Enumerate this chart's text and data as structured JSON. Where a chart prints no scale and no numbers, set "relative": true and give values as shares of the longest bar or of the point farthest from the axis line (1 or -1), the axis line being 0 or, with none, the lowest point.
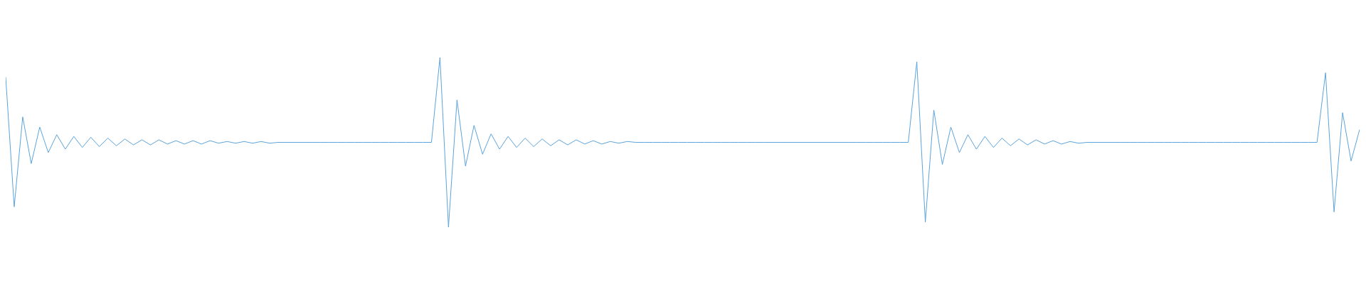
{
  "chart_data": {
    "type": "line",
    "relative": true,
    "grid": false,
    "legend": false,
    "marker": "none",
    "line_style": "solid",
    "categories": [
      null,
      null,
      null,
      null,
      null,
      null,
      null,
      null,
      null,
      null,
      null,
      null,
      null,
      null,
      null,
      null,
      null,
      null,
      null,
      null,
      null,
      null,
      null,
      null,
      null,
      null,
      null,
      null,
      null,
      null,
      null,
      null,
      null,
      null,
      null,
      null,
      null,
      null,
      null,
      null,
      null,
      null,
      null,
      null,
      null,
      null,
      null,
      null,
      null,
      null,
      null,
      null,
      null,
      null,
      null,
      null,
      null,
      null,
      null,
      null,
      null,
      null,
      null,
      null,
      null,
      null,
      null,
      null,
      null,
      null,
      null,
      null,
      null,
      null,
      null,
      null,
      null,
      null,
      null,
      null,
      null,
      null,
      null,
      null,
      null,
      null,
      null,
      null,
      null,
      null,
      null,
      null,
      null,
      null,
      null,
      null,
      null,
      null,
      null,
      null,
      null,
      null,
      null,
      null,
      null,
      null,
      null,
      null,
      null,
      null,
      null,
      null,
      null,
      null,
      null,
      null,
      null,
      null,
      null,
      null,
      null,
      null,
      null,
      null,
      null,
      null,
      null,
      null,
      null,
      null,
      null,
      null,
      null,
      null,
      null,
      null,
      null,
      null,
      null,
      null,
      null,
      null,
      null,
      null,
      null,
      null,
      null,
      null,
      null,
      null,
      null,
      null,
      null,
      null,
      null,
      null,
      null,
      null,
      null,
      null
    ],
    "series": [
      {
        "color": "#5ba3dc",
        "values": [
          0.885,
          0.12,
          0.65,
          0.375,
          0.59,
          0.44,
          0.545,
          0.46,
          0.535,
          0.47,
          0.53,
          0.475,
          0.525,
          0.48,
          0.52,
          0.485,
          0.515,
          0.485,
          0.515,
          0.49,
          0.51,
          0.49,
          0.51,
          0.49,
          0.51,
          0.495,
          0.505,
          0.495,
          0.505,
          0.495,
          0.505,
          0.495,
          0.5,
          0.5,
          0.5,
          0.5,
          0.5,
          0.5,
          0.5,
          0.5,
          0.5,
          0.5,
          0.5,
          0.5,
          0.5,
          0.5,
          0.5,
          0.5,
          0.5,
          0.5,
          0.5,
          1,
          0,
          0.75,
          0.36,
          0.6,
          0.43,
          0.55,
          0.46,
          0.535,
          0.47,
          0.525,
          0.475,
          0.52,
          0.48,
          0.515,
          0.485,
          0.515,
          0.49,
          0.51,
          0.49,
          0.505,
          0.495,
          0.505,
          0.5,
          0.5,
          0.5,
          0.5,
          0.5,
          0.5,
          0.5,
          0.5,
          0.5,
          0.5,
          0.5,
          0.5,
          0.5,
          0.5,
          0.5,
          0.5,
          0.5,
          0.5,
          0.5,
          0.5,
          0.5,
          0.5,
          0.5,
          0.5,
          0.5,
          0.5,
          0.5,
          0.5,
          0.5,
          0.5,
          0.5,
          0.5,
          0.5,
          0.975,
          0.03,
          0.69,
          0.37,
          0.59,
          0.44,
          0.545,
          0.46,
          0.535,
          0.47,
          0.525,
          0.48,
          0.52,
          0.485,
          0.515,
          0.49,
          0.51,
          0.49,
          0.505,
          0.495,
          0.5,
          0.5,
          0.5,
          0.5,
          0.5,
          0.5,
          0.5,
          0.5,
          0.5,
          0.5,
          0.5,
          0.5,
          0.5,
          0.5,
          0.5,
          0.5,
          0.5,
          0.5,
          0.5,
          0.5,
          0.5,
          0.5,
          0.5,
          0.5,
          0.5,
          0.5,
          0.5,
          0.5,
          0.91,
          0.09,
          0.675,
          0.39,
          0.575
        ]
      }
    ]
  }
}
